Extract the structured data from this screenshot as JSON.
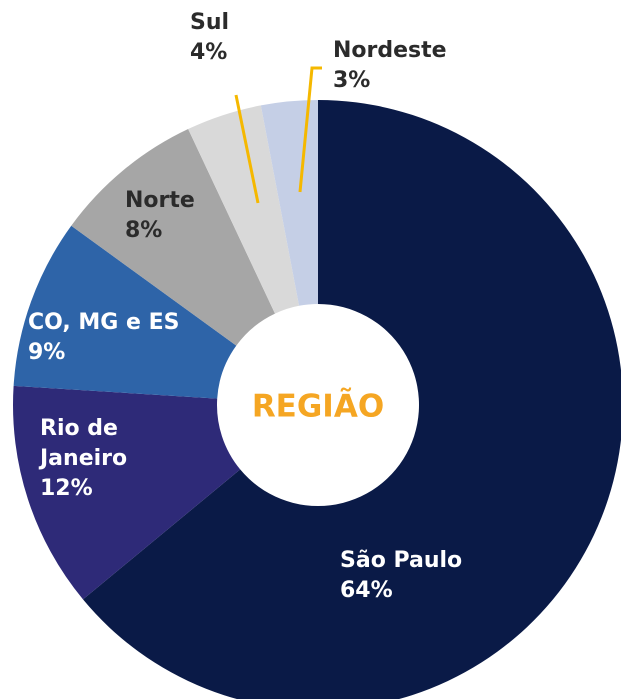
{
  "chart_data": {
    "type": "donut",
    "center_label": "REGIÃO",
    "categories": [
      "São Paulo",
      "Rio de Janeiro",
      "CO, MG e ES",
      "Norte",
      "Sul",
      "Nordeste"
    ],
    "values": [
      64,
      12,
      9,
      8,
      4,
      3
    ],
    "value_labels": [
      "64%",
      "12%",
      "9%",
      "8%",
      "4%",
      "3%"
    ],
    "colors": [
      "#0a1a47",
      "#2e2a78",
      "#2e64a8",
      "#a6a6a6",
      "#d9d9d9",
      "#c5cfe6"
    ]
  }
}
